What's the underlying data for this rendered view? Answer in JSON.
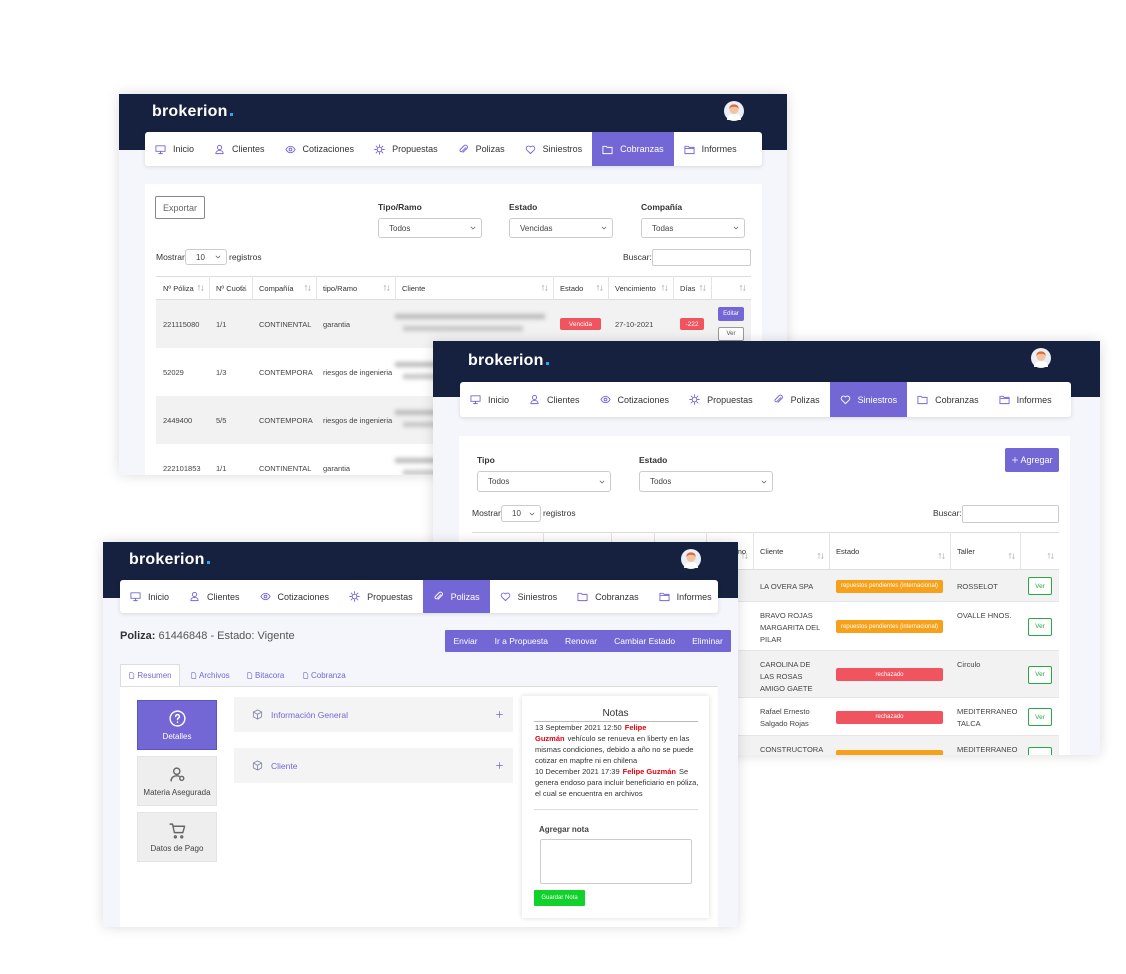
{
  "cobranzas": {
    "logo": "brokerion",
    "nav": [
      "Inicio",
      "Clientes",
      "Cotizaciones",
      "Propuestas",
      "Polizas",
      "Siniestros",
      "Cobranzas",
      "Informes"
    ],
    "active_nav": 6,
    "export": "Exportar",
    "filters": [
      {
        "label": "Tipo/Ramo",
        "value": "Todos"
      },
      {
        "label": "Estado",
        "value": "Vencidas"
      },
      {
        "label": "Compañía",
        "value": "Todas"
      }
    ],
    "length": {
      "before": "Mostrar",
      "value": "10",
      "after": "registros"
    },
    "search": "Buscar:",
    "columns": [
      "Nº Póliza",
      "Nº Cuota",
      "Compañía",
      "tipo/Ramo",
      "Cliente",
      "Estado",
      "Vencimiento",
      "Días"
    ],
    "rows": [
      {
        "cells": [
          "221115080",
          "1/1",
          "CONTINENTAL",
          "garantia"
        ],
        "estado": "Vencida",
        "vencimiento": "27-10-2021",
        "dias": "-222",
        "badge_color": "#f0555f",
        "actions": [
          "Editar",
          "Ver"
        ]
      },
      {
        "cells": [
          "52029",
          "1/3",
          "CONTEMPORA",
          "riesgos de ingenieria"
        ]
      },
      {
        "cells": [
          "2449400",
          "5/5",
          "CONTEMPORA",
          "riesgos de ingenieria"
        ]
      },
      {
        "cells": [
          "222101853",
          "1/1",
          "CONTINENTAL",
          "garantia"
        ]
      }
    ]
  },
  "siniestros": {
    "logo": "brokerion",
    "nav": [
      "Inicio",
      "Clientes",
      "Cotizaciones",
      "Propuestas",
      "Polizas",
      "Siniestros",
      "Cobranzas",
      "Informes"
    ],
    "active_nav": 5,
    "filters": [
      {
        "label": "Tipo",
        "value": "Todos"
      },
      {
        "label": "Estado",
        "value": "Todos"
      }
    ],
    "add": "Agregar",
    "length": {
      "before": "Mostrar",
      "value": "10",
      "after": "registros"
    },
    "search": "Buscar:",
    "columns": [
      "Ramo",
      "Cliente",
      "Estado",
      "Taller"
    ],
    "rows": [
      {
        "cliente": "LA OVERA SPA",
        "estado": "repuestos pendientes (internacional)",
        "badge_color": "#f7a11a",
        "taller": "ROSSELOT",
        "action": "Ver"
      },
      {
        "cliente": "BRAVO ROJAS MARGARITA DEL PILAR",
        "estado": "repuestos pendientes (internacional)",
        "badge_color": "#f7a11a",
        "taller": "OVALLE HNOS.",
        "action": "Ver"
      },
      {
        "cliente": "CAROLINA DE LAS ROSAS AMIGO GAETE",
        "estado": "rechazado",
        "badge_color": "#f0555f",
        "taller": "Circulo",
        "action": "Ver"
      },
      {
        "cliente": "Rafael Ernesto Salgado Rojas",
        "estado": "rechazado",
        "badge_color": "#f0555f",
        "taller": "MEDITERRANEO TALCA",
        "action": "Ver"
      },
      {
        "cliente": "CONSTRUCTORA",
        "badge_color": "#f7a11a",
        "taller": "MEDITERRANEO"
      }
    ]
  },
  "poliza": {
    "logo": "brokerion",
    "nav": [
      "Inicio",
      "Clientes",
      "Cotizaciones",
      "Propuestas",
      "Polizas",
      "Siniestros",
      "Cobranzas",
      "Informes"
    ],
    "active_nav": 4,
    "title_label": "Poliza:",
    "title_text": "61446848 - Estado: Vigente",
    "actions": [
      "Enviar",
      "Ir a Propuesta",
      "Renovar",
      "Cambiar Estado",
      "Eliminar"
    ],
    "tabs": [
      "Resumen",
      "Archivos",
      "Bitacora",
      "Cobranza"
    ],
    "active_tab": 0,
    "side": [
      "Detalles",
      "Materia Asegurada",
      "Datos de Pago"
    ],
    "active_side": 0,
    "sections": [
      "Información General",
      "Cliente"
    ],
    "notes": {
      "title": "Notas",
      "entries": [
        {
          "date": "13 September 2021 12:50",
          "author": "Felipe Guzmán",
          "text": "vehículo se renueva en liberty en las mismas condiciones, debido a año no se puede cotizar en mapfre ni en chilena"
        },
        {
          "date": "10 December 2021 17:39",
          "author": "Felipe Guzmán",
          "text": "Se genera endoso para incluir beneficiario en póliza, el cual se encuentra en archivos"
        }
      ],
      "add_label": "Agregar nota",
      "save": "Guardar Nota"
    }
  }
}
